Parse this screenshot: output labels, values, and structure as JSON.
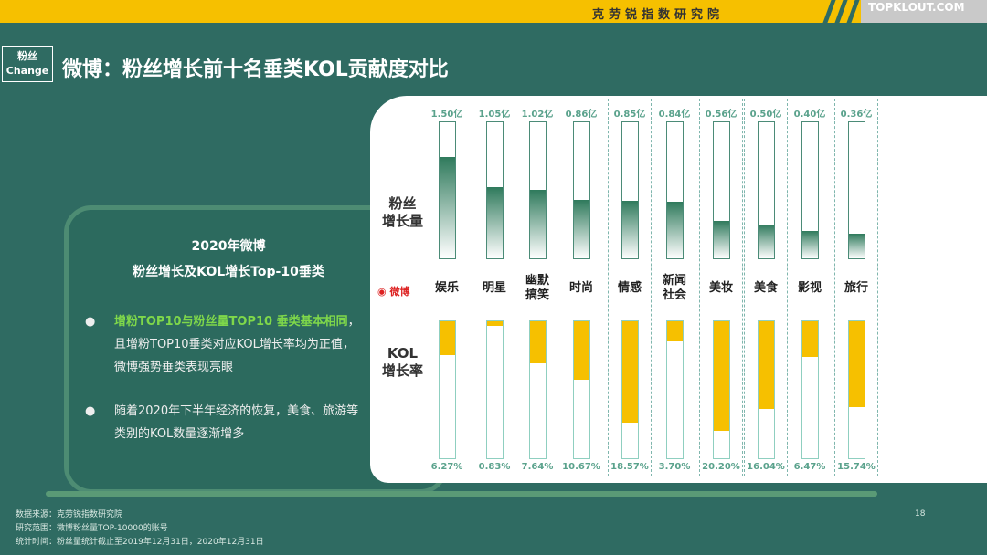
{
  "header": {
    "brand": "克劳锐指数研究院",
    "logo": "TOPKLOUT.COM"
  },
  "tag": {
    "line1": "粉丝",
    "line2": "Change"
  },
  "title": "微博：粉丝增长前十名垂类KOL贡献度对比",
  "left_panel": {
    "heading1": "2020年微博",
    "heading2": "粉丝增长及KOL增长Top-10垂类",
    "bullets": [
      {
        "highlight": "增粉TOP10与粉丝量TOP10 垂类基本相同",
        "text": "，且增粉TOP10垂类对应KOL增长率均为正值，微博强势垂类表现亮眼"
      },
      {
        "highlight": "",
        "text": "随着2020年下半年经济的恢复，美食、旅游等类别的KOL数量逐渐增多"
      }
    ]
  },
  "chart_data": {
    "type": "bar",
    "row_labels": {
      "fans": "粉丝\n增长量",
      "kol": "KOL\n增长率"
    },
    "platform_logo": "微博",
    "categories": [
      "娱乐",
      "明星",
      "幽默\n搞笑",
      "时尚",
      "情感",
      "新闻\n社会",
      "美妆",
      "美食",
      "影视",
      "旅行"
    ],
    "series": [
      {
        "name": "粉丝增长量",
        "unit": "亿",
        "values": [
          1.5,
          1.05,
          1.02,
          0.86,
          0.85,
          0.84,
          0.56,
          0.5,
          0.4,
          0.36
        ],
        "labels": [
          "1.50亿",
          "1.05亿",
          "1.02亿",
          "0.86亿",
          "0.85亿",
          "0.84亿",
          "0.56亿",
          "0.50亿",
          "0.40亿",
          "0.36亿"
        ],
        "color": "#2f7a5c"
      },
      {
        "name": "KOL增长率",
        "unit": "%",
        "values": [
          6.27,
          0.83,
          7.64,
          10.67,
          18.57,
          3.7,
          20.2,
          16.04,
          6.47,
          15.74
        ],
        "labels": [
          "6.27%",
          "0.83%",
          "7.64%",
          "10.67%",
          "18.57%",
          "3.70%",
          "20.20%",
          "16.04%",
          "6.47%",
          "15.74%"
        ],
        "color": "#f6c000"
      }
    ],
    "highlighted_categories": [
      "情感",
      "美妆",
      "美食",
      "旅行"
    ]
  },
  "footer": {
    "source": "数据来源：克劳锐指数研究院",
    "scope": "研究范围：微博粉丝量TOP-10000的账号",
    "time": "统计时间：粉丝量统计截止至2019年12月31日，2020年12月31日"
  },
  "page_number": "18"
}
